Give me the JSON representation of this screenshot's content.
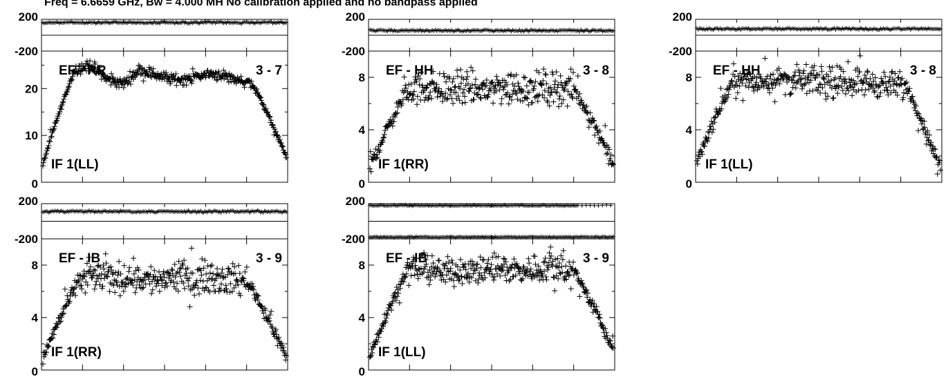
{
  "title": "Freq = 6.6659 GHz, Bw = 4.000 MH   No calibration applied and no bandpass applied",
  "colors": {
    "ink": "#000000",
    "background": "#ffffff"
  },
  "chart_data": [
    {
      "type": "scatter",
      "baseline": "EF - RR",
      "pair": "3 - 7",
      "polarization": "IF 1(LL)",
      "amp_ticks": [
        "0",
        "10",
        "20"
      ],
      "amp_ylim": [
        0,
        28
      ],
      "phase_ticks": [
        "200",
        "-200"
      ],
      "phase_ylim": [
        -200,
        200
      ],
      "phase_deg": 160,
      "amp_profile": {
        "ramp_end": 0.13,
        "roll_start": 0.86,
        "edge_low": 3.5,
        "edge_high": 5.5,
        "levels": [
          24,
          25,
          22,
          21,
          24,
          23,
          22,
          22,
          23,
          23,
          22,
          21
        ],
        "scatter": 1.0
      }
    },
    {
      "type": "scatter",
      "baseline": "EF - HH",
      "pair": "3 - 8",
      "polarization": "IF 1(RR)",
      "amp_ticks": [
        "0",
        "4",
        "8"
      ],
      "amp_ylim": [
        0,
        10
      ],
      "phase_ticks": [
        "200",
        "-200"
      ],
      "phase_ylim": [
        -200,
        200
      ],
      "phase_deg": 60,
      "amp_profile": {
        "ramp_end": 0.15,
        "roll_start": 0.84,
        "edge_low": 1.0,
        "edge_high": 1.5,
        "levels": [
          7.0,
          7.3,
          7.1,
          7.2,
          7.0,
          7.3,
          7.2,
          7.1,
          7.3,
          7.0
        ],
        "scatter": 1.1
      }
    },
    {
      "type": "scatter",
      "baseline": "EF - HH",
      "pair": "3 - 8",
      "polarization": "IF 1(LL)",
      "amp_ticks": [
        "0",
        "4",
        "8"
      ],
      "amp_ylim": [
        0,
        10
      ],
      "phase_ticks": [
        "200",
        "-200"
      ],
      "phase_ylim": [
        -200,
        200
      ],
      "phase_deg": 80,
      "amp_profile": {
        "ramp_end": 0.15,
        "roll_start": 0.86,
        "edge_low": 1.5,
        "edge_high": 1.0,
        "levels": [
          7.8,
          7.6,
          7.9,
          7.7,
          7.8,
          7.5,
          7.7,
          7.6,
          7.4,
          7.3
        ],
        "scatter": 0.9
      }
    },
    {
      "type": "scatter",
      "baseline": "EF - IB",
      "pair": "3 - 9",
      "polarization": "IF 1(RR)",
      "amp_ticks": [
        "0",
        "4",
        "8"
      ],
      "amp_ylim": [
        0,
        10
      ],
      "phase_ticks": [
        "200",
        "-200"
      ],
      "phase_ylim": [
        -200,
        200
      ],
      "phase_deg": 110,
      "amp_profile": {
        "ramp_end": 0.15,
        "roll_start": 0.84,
        "edge_low": 0.8,
        "edge_high": 1.0,
        "levels": [
          7.0,
          7.2,
          7.0,
          7.1,
          6.8,
          7.2,
          7.0,
          7.1,
          6.9,
          6.8
        ],
        "scatter": 1.0
      }
    },
    {
      "type": "scatter",
      "baseline": "EF - IB",
      "pair": "3 - 9",
      "polarization": "IF 1(LL)",
      "amp_ticks": [
        "0",
        "4",
        "8"
      ],
      "amp_ylim": [
        0,
        10
      ],
      "phase_ticks": [
        "200",
        "-200"
      ],
      "phase_ylim": [
        -200,
        200
      ],
      "phase_deg": -180,
      "phase_wrap": true,
      "amp_profile": {
        "ramp_end": 0.15,
        "roll_start": 0.84,
        "edge_low": 1.0,
        "edge_high": 1.5,
        "levels": [
          7.6,
          7.8,
          7.4,
          7.7,
          7.5,
          7.8,
          7.6,
          7.7,
          7.9,
          7.5
        ],
        "scatter": 0.9
      }
    }
  ]
}
